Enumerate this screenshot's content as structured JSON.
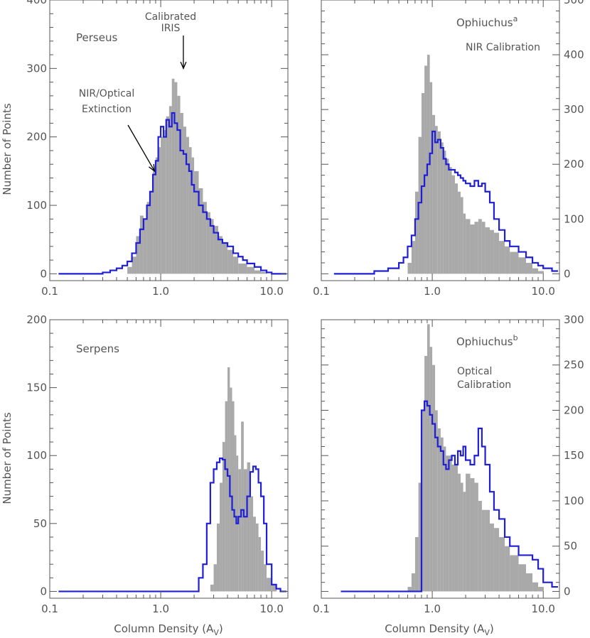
{
  "colors": {
    "histogram_fill": "#a9a9a9",
    "step_line": "#1f1fd6",
    "axes": "#555555",
    "text": "#555555",
    "arrow": "#000000"
  },
  "labels": {
    "ylabel": "Number of Points",
    "xlabel_main": "Column Density (A",
    "xlabel_sub": "V",
    "xlabel_close": ")"
  },
  "chart_data": [
    {
      "panel": "top-left",
      "type": "bar",
      "title": "Perseus",
      "title_sup": "",
      "annotations": [
        {
          "text": "NIR/Optical",
          "target_x": 0.88,
          "target_y": 150
        },
        {
          "text": "Extinction"
        },
        {
          "text": "Calibrated",
          "target_x": 1.6,
          "target_y": 300
        },
        {
          "text": "IRIS"
        }
      ],
      "xscale": "log",
      "xlim": [
        0.1,
        14
      ],
      "ylim": [
        -10,
        400
      ],
      "left_axis": true,
      "xticks": [
        0.1,
        1.0,
        10.0
      ],
      "xtick_labels": [
        "0.1",
        "1.0",
        "10.0"
      ],
      "yticks": [
        0,
        100,
        200,
        300,
        400
      ],
      "ytick_labels": [
        "0",
        "100",
        "200",
        "300",
        "400"
      ],
      "series": [
        {
          "kind": "filled",
          "x": [
            0.5,
            0.55,
            0.6,
            0.65,
            0.7,
            0.75,
            0.8,
            0.85,
            0.9,
            0.95,
            1.0,
            1.06,
            1.12,
            1.19,
            1.26,
            1.33,
            1.41,
            1.5,
            1.6,
            1.7,
            1.8,
            1.9,
            2.0,
            2.2,
            2.4,
            2.6,
            2.8,
            3.0,
            3.3,
            3.6,
            4.0,
            4.5,
            5.0,
            6.0,
            7.0,
            8.0
          ],
          "y": [
            10,
            25,
            55,
            85,
            80,
            105,
            120,
            150,
            170,
            185,
            200,
            210,
            230,
            245,
            285,
            280,
            260,
            235,
            215,
            200,
            185,
            170,
            150,
            125,
            105,
            90,
            80,
            70,
            55,
            45,
            35,
            25,
            15,
            10,
            5,
            3
          ]
        },
        {
          "kind": "step",
          "x": [
            0.12,
            0.3,
            0.35,
            0.4,
            0.45,
            0.5,
            0.55,
            0.6,
            0.65,
            0.7,
            0.75,
            0.8,
            0.85,
            0.9,
            0.95,
            1.0,
            1.06,
            1.12,
            1.19,
            1.26,
            1.33,
            1.41,
            1.5,
            1.6,
            1.7,
            1.8,
            1.9,
            2.0,
            2.2,
            2.4,
            2.6,
            2.8,
            3.0,
            3.3,
            3.6,
            4.0,
            4.5,
            5.0,
            5.5,
            6.0,
            7.0,
            8.0,
            9.0,
            10.0
          ],
          "y": [
            0,
            2,
            5,
            8,
            12,
            18,
            30,
            45,
            65,
            80,
            100,
            120,
            145,
            165,
            200,
            215,
            200,
            225,
            215,
            235,
            220,
            210,
            180,
            175,
            160,
            150,
            130,
            120,
            100,
            90,
            80,
            70,
            60,
            50,
            45,
            40,
            30,
            25,
            20,
            15,
            10,
            5,
            2,
            0
          ]
        }
      ]
    },
    {
      "panel": "top-right",
      "type": "bar",
      "title": "Ophiuchus",
      "title_sup": "a",
      "annotations": [
        {
          "text": "NIR Calibration"
        }
      ],
      "xscale": "log",
      "xlim": [
        0.1,
        14
      ],
      "ylim": [
        -12.5,
        500
      ],
      "left_axis": false,
      "xticks": [
        0.1,
        1.0,
        10.0
      ],
      "xtick_labels": [
        "0.1",
        "1.0",
        "10.0"
      ],
      "yticks": [
        0,
        100,
        200,
        300,
        400,
        500
      ],
      "ytick_labels": [
        "0",
        "100",
        "200",
        "300",
        "400",
        "500"
      ],
      "series": [
        {
          "kind": "filled",
          "x": [
            0.6,
            0.65,
            0.7,
            0.75,
            0.8,
            0.85,
            0.9,
            0.95,
            1.0,
            1.06,
            1.12,
            1.19,
            1.26,
            1.33,
            1.41,
            1.5,
            1.6,
            1.7,
            1.8,
            1.9,
            2.0,
            2.2,
            2.4,
            2.6,
            2.8,
            3.0,
            3.3,
            3.6,
            4.0,
            4.5,
            5.0,
            6.0,
            7.0,
            8.0,
            9.0
          ],
          "y": [
            20,
            60,
            150,
            250,
            330,
            380,
            400,
            350,
            290,
            270,
            260,
            240,
            225,
            210,
            195,
            180,
            165,
            150,
            140,
            110,
            100,
            90,
            95,
            100,
            95,
            85,
            80,
            75,
            60,
            50,
            40,
            30,
            20,
            10,
            5
          ]
        },
        {
          "kind": "step",
          "x": [
            0.13,
            0.3,
            0.4,
            0.5,
            0.55,
            0.6,
            0.65,
            0.7,
            0.75,
            0.8,
            0.85,
            0.9,
            0.95,
            1.0,
            1.06,
            1.12,
            1.19,
            1.26,
            1.33,
            1.41,
            1.5,
            1.6,
            1.7,
            1.8,
            1.9,
            2.0,
            2.2,
            2.4,
            2.6,
            2.8,
            3.0,
            3.3,
            3.6,
            4.0,
            4.5,
            5.0,
            6.0,
            7.0,
            8.0,
            9.0,
            10.0,
            12.0
          ],
          "y": [
            0,
            5,
            10,
            20,
            30,
            50,
            70,
            100,
            130,
            160,
            180,
            200,
            220,
            260,
            240,
            245,
            230,
            210,
            200,
            190,
            190,
            185,
            180,
            175,
            170,
            165,
            160,
            170,
            160,
            165,
            150,
            130,
            100,
            80,
            60,
            50,
            40,
            30,
            20,
            15,
            10,
            5
          ]
        }
      ]
    },
    {
      "panel": "bottom-left",
      "type": "bar",
      "title": "Serpens",
      "title_sup": "",
      "annotations": [],
      "xscale": "log",
      "xlim": [
        0.1,
        14
      ],
      "ylim": [
        -5,
        200
      ],
      "left_axis": true,
      "xticks": [
        0.1,
        1.0,
        10.0
      ],
      "xtick_labels": [
        "0.1",
        "1.0",
        "10.0"
      ],
      "yticks": [
        0,
        50,
        100,
        150,
        200
      ],
      "ytick_labels": [
        "0",
        "50",
        "100",
        "150",
        "200"
      ],
      "series": [
        {
          "kind": "filled",
          "x": [
            2.8,
            3.0,
            3.2,
            3.4,
            3.6,
            3.8,
            4.0,
            4.2,
            4.4,
            4.6,
            4.8,
            5.0,
            5.3,
            5.6,
            6.0,
            6.4,
            6.8,
            7.2,
            7.6,
            8.0,
            8.5,
            9.0,
            10.0
          ],
          "y": [
            5,
            20,
            50,
            80,
            110,
            140,
            165,
            150,
            140,
            115,
            100,
            90,
            125,
            90,
            95,
            70,
            55,
            50,
            40,
            30,
            20,
            10,
            5
          ]
        },
        {
          "kind": "step",
          "x": [
            0.12,
            2.2,
            2.4,
            2.6,
            2.8,
            3.0,
            3.2,
            3.4,
            3.6,
            3.8,
            4.0,
            4.2,
            4.4,
            4.6,
            4.8,
            5.0,
            5.3,
            5.6,
            6.0,
            6.4,
            6.8,
            7.2,
            7.6,
            8.0,
            8.5,
            9.0,
            10.0,
            11.0,
            12.0
          ],
          "y": [
            0,
            10,
            20,
            50,
            80,
            90,
            95,
            98,
            97,
            90,
            85,
            70,
            60,
            55,
            50,
            55,
            60,
            55,
            70,
            88,
            92,
            90,
            80,
            70,
            50,
            20,
            5,
            2,
            0
          ]
        }
      ]
    },
    {
      "panel": "bottom-right",
      "type": "bar",
      "title": "Ophiuchus",
      "title_sup": "b",
      "annotations": [
        {
          "text": "Optical"
        },
        {
          "text": "Calibration"
        }
      ],
      "xscale": "log",
      "xlim": [
        0.1,
        14
      ],
      "ylim": [
        -7.5,
        300
      ],
      "left_axis": false,
      "xticks": [
        0.1,
        1.0,
        10.0
      ],
      "xtick_labels": [
        "0.1",
        "1.0",
        "10.0"
      ],
      "yticks": [
        0,
        50,
        100,
        150,
        200,
        250,
        300
      ],
      "ytick_labels": [
        "0",
        "50",
        "100",
        "150",
        "200",
        "250",
        "300"
      ],
      "series": [
        {
          "kind": "filled",
          "x": [
            0.6,
            0.65,
            0.7,
            0.75,
            0.8,
            0.85,
            0.9,
            0.95,
            1.0,
            1.06,
            1.12,
            1.19,
            1.26,
            1.33,
            1.41,
            1.5,
            1.6,
            1.7,
            1.8,
            1.9,
            2.0,
            2.2,
            2.4,
            2.6,
            2.8,
            3.0,
            3.3,
            3.6,
            4.0,
            4.5,
            5.0,
            6.0,
            7.0,
            8.0,
            9.0
          ],
          "y": [
            5,
            20,
            60,
            120,
            200,
            260,
            295,
            270,
            250,
            200,
            180,
            170,
            160,
            150,
            150,
            140,
            140,
            130,
            120,
            110,
            130,
            125,
            120,
            100,
            90,
            90,
            75,
            70,
            60,
            50,
            40,
            30,
            20,
            10,
            5
          ]
        },
        {
          "kind": "step",
          "x": [
            0.15,
            0.8,
            0.85,
            0.9,
            0.95,
            1.0,
            1.06,
            1.12,
            1.19,
            1.26,
            1.33,
            1.41,
            1.5,
            1.6,
            1.7,
            1.8,
            1.9,
            2.0,
            2.2,
            2.4,
            2.6,
            2.8,
            3.0,
            3.3,
            3.6,
            4.0,
            4.5,
            5.0,
            6.0,
            7.0,
            8.0,
            9.0,
            10.0,
            12.0
          ],
          "y": [
            0,
            200,
            210,
            205,
            195,
            185,
            170,
            160,
            155,
            140,
            135,
            145,
            150,
            140,
            155,
            150,
            160,
            145,
            140,
            150,
            180,
            160,
            140,
            110,
            90,
            80,
            60,
            50,
            40,
            40,
            35,
            25,
            10,
            5
          ]
        }
      ]
    }
  ]
}
